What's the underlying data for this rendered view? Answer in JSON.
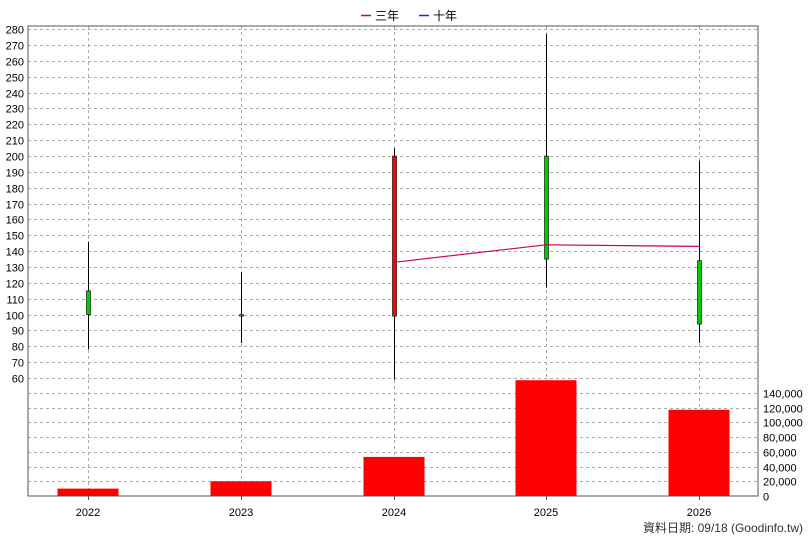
{
  "legend": {
    "items": [
      {
        "label": "三年",
        "color": "#cc0066"
      },
      {
        "label": "十年",
        "color": "#6600cc"
      }
    ]
  },
  "footer": {
    "source": "資料日期: 09/18 (Goodinfo.tw)"
  },
  "chart_data": [
    {
      "type": "candlestick",
      "x": [
        "2022",
        "2023",
        "2024",
        "2025",
        "2026"
      ],
      "ohlc": [
        {
          "open": 100,
          "high": 146,
          "low": 78,
          "close": 115
        },
        {
          "open": 99,
          "high": 127,
          "low": 82,
          "close": 100
        },
        {
          "open": 200,
          "high": 205,
          "low": 59,
          "close": 99
        },
        {
          "open": 135,
          "high": 277,
          "low": 117,
          "close": 200
        },
        {
          "open": 94,
          "high": 197,
          "low": 82,
          "close": 134
        }
      ],
      "ylim": [
        60,
        282
      ],
      "yticks": [
        60,
        70,
        80,
        90,
        100,
        110,
        120,
        130,
        140,
        150,
        160,
        170,
        180,
        190,
        200,
        210,
        220,
        230,
        240,
        250,
        260,
        270,
        280
      ],
      "up_color": "#00cc00",
      "down_color": "#ff0000",
      "series": [
        {
          "name": "三年",
          "type": "line",
          "x": [
            "2024",
            "2025",
            "2026"
          ],
          "values": [
            133,
            144,
            143
          ],
          "color": "#cc0066"
        },
        {
          "name": "十年",
          "type": "line",
          "x": [],
          "values": [],
          "color": "#6600cc"
        }
      ],
      "grid": true,
      "legend_position": "top-center"
    },
    {
      "type": "bar",
      "categories": [
        "2022",
        "2023",
        "2024",
        "2025",
        "2026"
      ],
      "values": [
        10000,
        20000,
        53000,
        157000,
        117000
      ],
      "ylim": [
        0,
        160000
      ],
      "yticks": [
        0,
        20000,
        40000,
        60000,
        80000,
        100000,
        120000,
        140000
      ],
      "ytick_labels": [
        "0",
        "20,000",
        "40,000",
        "60,000",
        "80,000",
        "100,000",
        "120,000",
        "140,000"
      ],
      "color": "#ff0000",
      "axis_side": "right",
      "grid": true
    }
  ]
}
